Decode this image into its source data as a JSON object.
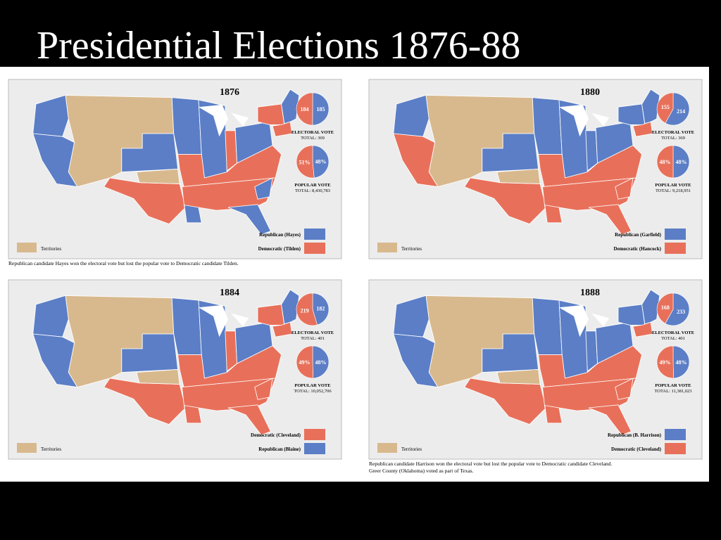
{
  "title": "Presidential Elections 1876-88",
  "maps": [
    {
      "year": "1876",
      "territories": "Territories",
      "legend": [
        {
          "label": "Republican (Hayes)",
          "color": "#5b7ec6"
        },
        {
          "label": "Democratic (Tilden)",
          "color": "#e8705a"
        }
      ],
      "electoral": {
        "title": "ELECTORAL VOTE",
        "total": "TOTAL: 369",
        "slices": [
          {
            "label": "185",
            "value": 185,
            "color": "#5b7ec6"
          },
          {
            "label": "184",
            "value": 184,
            "color": "#e8705a"
          }
        ]
      },
      "popular": {
        "title": "POPULAR VOTE",
        "total": "TOTAL: 8,430,783",
        "slices": [
          {
            "label": "48%",
            "value": 48,
            "color": "#5b7ec6"
          },
          {
            "label": "51%",
            "value": 51,
            "color": "#e8705a"
          }
        ]
      },
      "caption": [
        "Republican candidate Hayes won the electoral vote but lost the popular vote to Democratic candidate Tilden."
      ]
    },
    {
      "year": "1880",
      "territories": "Territories",
      "legend": [
        {
          "label": "Republican (Garfield)",
          "color": "#5b7ec6"
        },
        {
          "label": "Democratic (Hancock)",
          "color": "#e8705a"
        }
      ],
      "electoral": {
        "title": "ELECTORAL VOTE",
        "total": "TOTAL: 369",
        "slices": [
          {
            "label": "214",
            "value": 214,
            "color": "#5b7ec6"
          },
          {
            "label": "155",
            "value": 155,
            "color": "#e8705a"
          }
        ]
      },
      "popular": {
        "title": "POPULAR VOTE",
        "total": "TOTAL: 9,218,951",
        "slices": [
          {
            "label": "48%",
            "value": 48,
            "color": "#5b7ec6"
          },
          {
            "label": "48%",
            "value": 48,
            "color": "#e8705a"
          }
        ]
      },
      "caption": []
    },
    {
      "year": "1884",
      "territories": "Territories",
      "legend": [
        {
          "label": "Democratic (Cleveland)",
          "color": "#e8705a"
        },
        {
          "label": "Republican (Blaine)",
          "color": "#5b7ec6"
        }
      ],
      "electoral": {
        "title": "ELECTORAL VOTE",
        "total": "TOTAL: 401",
        "slices": [
          {
            "label": "182",
            "value": 182,
            "color": "#5b7ec6"
          },
          {
            "label": "219",
            "value": 219,
            "color": "#e8705a"
          }
        ]
      },
      "popular": {
        "title": "POPULAR VOTE",
        "total": "TOTAL: 10,052,706",
        "slices": [
          {
            "label": "48%",
            "value": 48,
            "color": "#5b7ec6"
          },
          {
            "label": "49%",
            "value": 49,
            "color": "#e8705a"
          }
        ]
      },
      "caption": []
    },
    {
      "year": "1888",
      "territories": "Territories",
      "legend": [
        {
          "label": "Republican (B. Harrison)",
          "color": "#5b7ec6"
        },
        {
          "label": "Democratic (Cleveland)",
          "color": "#e8705a"
        }
      ],
      "electoral": {
        "title": "ELECTORAL VOTE",
        "total": "TOTAL: 401",
        "slices": [
          {
            "label": "233",
            "value": 233,
            "color": "#5b7ec6"
          },
          {
            "label": "168",
            "value": 168,
            "color": "#e8705a"
          }
        ]
      },
      "popular": {
        "title": "POPULAR VOTE",
        "total": "TOTAL: 11,381,023",
        "slices": [
          {
            "label": "48%",
            "value": 48,
            "color": "#5b7ec6"
          },
          {
            "label": "49%",
            "value": 49,
            "color": "#e8705a"
          }
        ]
      },
      "caption": [
        "Republican candidate Harrison won the electoral vote but lost the popular vote to Democratic candidate Cleveland.",
        "Greer County (Oklahoma) voted as part of Texas."
      ]
    }
  ]
}
